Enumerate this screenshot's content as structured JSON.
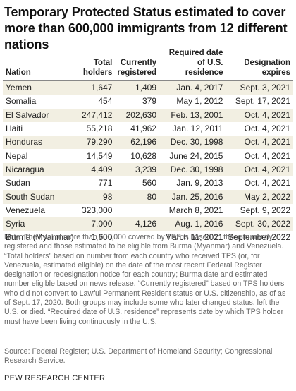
{
  "title": "Temporary Protected Status estimated to cover more than 600,000 immigrants from 12 different nations",
  "table": {
    "headers": {
      "nation": "Nation",
      "holders": "Total holders",
      "registered": "Currently registered",
      "date": "Required date of U.S. residence",
      "expires": "Designation expires"
    },
    "rows": [
      {
        "nation": "Yemen",
        "holders": "1,647",
        "registered": "1,409",
        "date": "Jan. 4, 2017",
        "expires": "Sept. 3, 2021"
      },
      {
        "nation": "Somalia",
        "holders": "454",
        "registered": "379",
        "date": "May 1, 2012",
        "expires": "Sept. 17, 2021"
      },
      {
        "nation": "El Salvador",
        "holders": "247,412",
        "registered": "202,630",
        "date": "Feb. 13, 2001",
        "expires": "Oct. 4, 2021"
      },
      {
        "nation": "Haiti",
        "holders": "55,218",
        "registered": "41,962",
        "date": "Jan. 12, 2011",
        "expires": "Oct. 4, 2021"
      },
      {
        "nation": "Honduras",
        "holders": "79,290",
        "registered": "62,196",
        "date": "Dec. 30, 1998",
        "expires": "Oct. 4, 2021"
      },
      {
        "nation": "Nepal",
        "holders": "14,549",
        "registered": "10,628",
        "date": "June 24, 2015",
        "expires": "Oct. 4, 2021"
      },
      {
        "nation": "Nicaragua",
        "holders": "4,409",
        "registered": "3,239",
        "date": "Dec. 30, 1998",
        "expires": "Oct. 4, 2021"
      },
      {
        "nation": "Sudan",
        "holders": "771",
        "registered": "560",
        "date": "Jan. 9, 2013",
        "expires": "Oct. 4, 2021"
      },
      {
        "nation": "South Sudan",
        "holders": "98",
        "registered": "80",
        "date": "Jan. 25, 2016",
        "expires": "May 2, 2022"
      },
      {
        "nation": "Venezuela",
        "holders": "323,000",
        "registered": "",
        "date": "March 8, 2021",
        "expires": "Sept. 9, 2022"
      },
      {
        "nation": "Syria",
        "holders": "7,000",
        "registered": "4,126",
        "date": "Aug. 1, 2016",
        "expires": "Sept. 30, 2022"
      },
      {
        "nation": "Burma (Myanmar)",
        "holders": "1,600",
        "registered": "",
        "date": "March 11, 2021",
        "expires": "September 2022"
      }
    ]
  },
  "note": "Note: The total of more than 600,000 covered by TPS is based on those currently registered and those estimated to be eligible from Burma (Myanmar) and Venezuela. “Total holders” based on number from each country who received TPS (or, for Venezuela, estimated eligible) on the date of the most recent Federal Register designation or redesignation notice for each country; Burma date and estimated number eligible based on news release. “Currently registered” based on TPS holders who did not convert to Lawful Permanent Resident status or U.S. citizenship, as of as of Sept. 17, 2020. Both groups may include some who later changed status, left the U.S. or died. “Required date of U.S. residence” represents date by which TPS holder must have been living continuously in the U.S.",
  "source": "Source: Federal Register; U.S. Department of Homeland Security; Congressional Research Service.",
  "footer": "PEW RESEARCH CENTER",
  "colors": {
    "stripe": "#f2efe2",
    "note_text": "#666666",
    "rule": "#888888"
  }
}
